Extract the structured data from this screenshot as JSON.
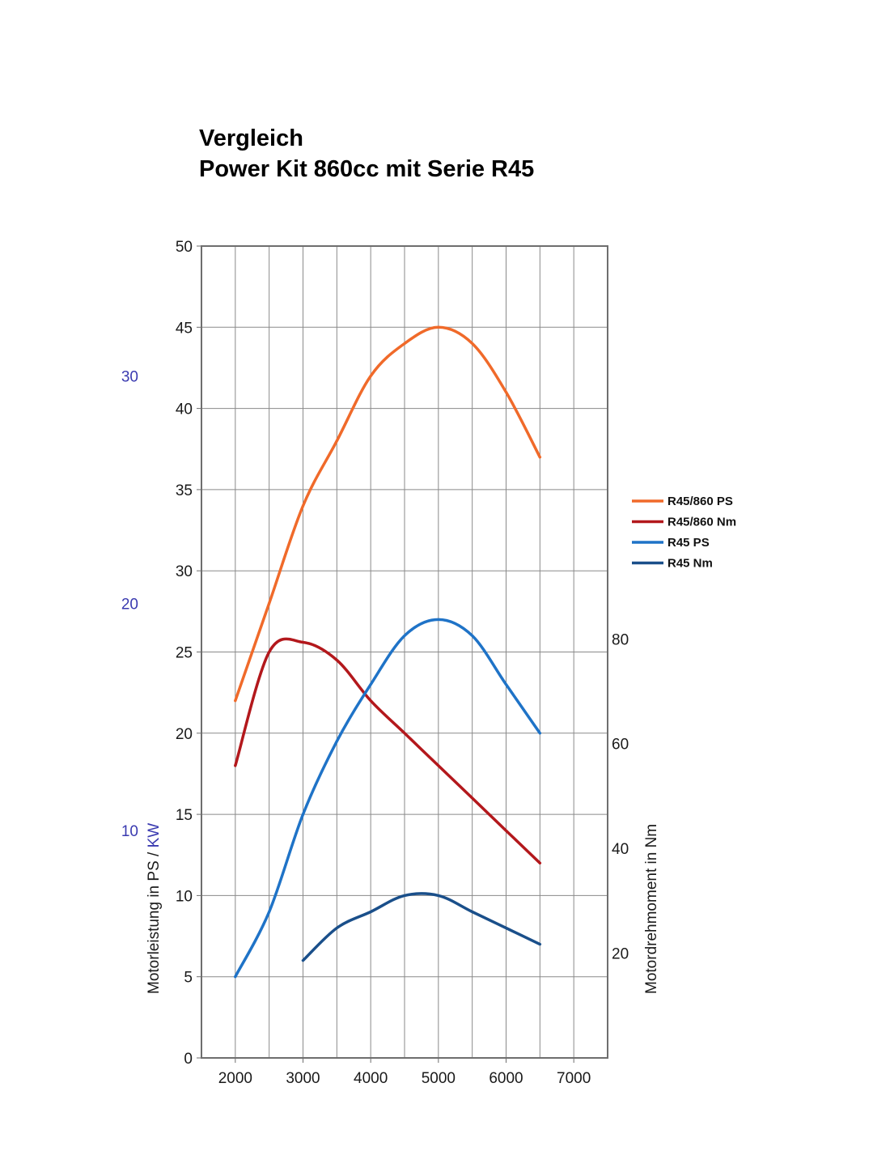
{
  "chart_data": {
    "type": "line",
    "title_line1": "Vergleich",
    "title_line2": "Power Kit 860cc mit Serie R45",
    "x_ticks": [
      2000,
      3000,
      4000,
      5000,
      6000,
      7000
    ],
    "xlim": [
      1500,
      7500
    ],
    "ylim_left": [
      0,
      50
    ],
    "y_ticks_left": [
      0,
      5,
      10,
      15,
      20,
      25,
      30,
      35,
      40,
      45,
      50
    ],
    "y_ticks_kw": [
      10,
      20,
      30
    ],
    "kw_per_ps": 0.7143,
    "y_ticks_right": [
      20,
      40,
      60,
      80
    ],
    "nm_per_ps_unit": 3.1,
    "ylabel_left_ps": "Motorleistung in PS / ",
    "ylabel_left_kw": "KW",
    "ylabel_right": "Motordrehmoment in Nm",
    "grid": true,
    "legend_position": "right",
    "series": [
      {
        "name": "R45/860 PS",
        "color": "#f06a2a",
        "axis": "left",
        "x": [
          2000,
          2500,
          3000,
          3500,
          4000,
          4500,
          5000,
          5500,
          6000,
          6500
        ],
        "y": [
          22,
          28,
          34,
          38,
          42,
          44,
          45,
          44,
          41,
          37
        ]
      },
      {
        "name": "R45/860 Nm",
        "color": "#b3181c",
        "axis": "left",
        "x": [
          2000,
          2500,
          3000,
          3500,
          4000,
          4500,
          5000,
          5500,
          6000,
          6500
        ],
        "y": [
          18,
          25,
          25.6,
          24.5,
          22,
          20,
          18,
          16,
          14,
          12
        ]
      },
      {
        "name": "R45 PS",
        "color": "#1f73c7",
        "axis": "left",
        "x": [
          2000,
          2500,
          3000,
          3500,
          4000,
          4500,
          5000,
          5500,
          6000,
          6500
        ],
        "y": [
          5,
          9,
          15,
          19.5,
          23,
          26,
          27,
          26,
          23,
          20
        ]
      },
      {
        "name": "R45 Nm",
        "color": "#1a4f8a",
        "axis": "left",
        "x": [
          3000,
          3500,
          4000,
          4500,
          5000,
          5500,
          6000,
          6500
        ],
        "y": [
          6,
          8,
          9,
          10,
          10,
          9,
          8,
          7
        ]
      }
    ]
  }
}
